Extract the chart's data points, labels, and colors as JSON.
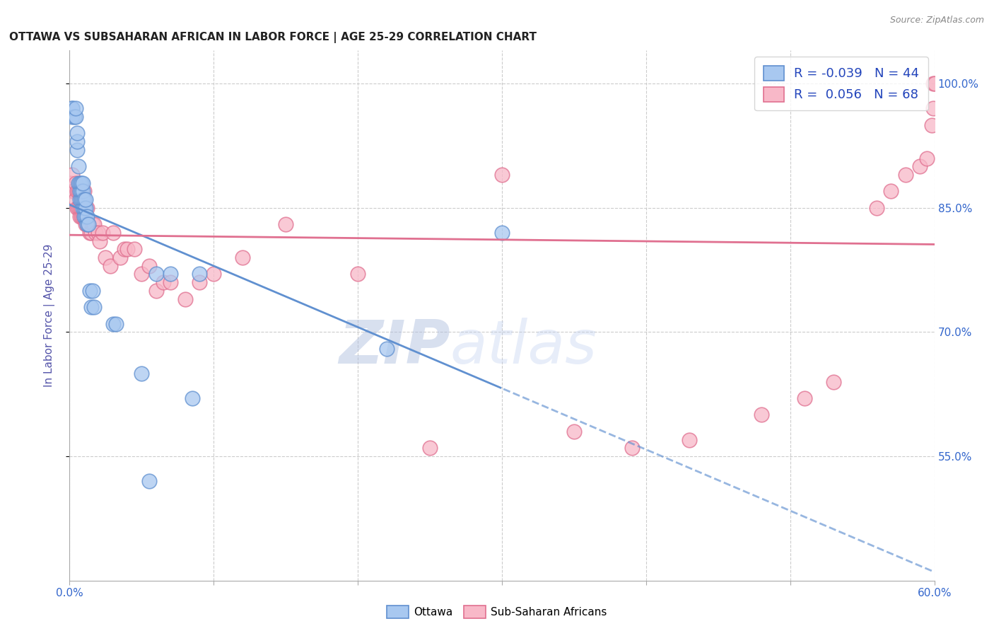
{
  "title": "OTTAWA VS SUBSAHARAN AFRICAN IN LABOR FORCE | AGE 25-29 CORRELATION CHART",
  "source": "Source: ZipAtlas.com",
  "ylabel": "In Labor Force | Age 25-29",
  "xlim": [
    0.0,
    0.6
  ],
  "ylim": [
    0.4,
    1.04
  ],
  "xticks": [
    0.0,
    0.1,
    0.2,
    0.3,
    0.4,
    0.5,
    0.6
  ],
  "xtick_labels": [
    "0.0%",
    "",
    "",
    "",
    "",
    "",
    "60.0%"
  ],
  "ytick_positions": [
    0.55,
    0.7,
    0.85,
    1.0
  ],
  "ytick_labels": [
    "55.0%",
    "70.0%",
    "85.0%",
    "100.0%"
  ],
  "watermark_zip": "ZIP",
  "watermark_atlas": "atlas",
  "legend_r1": "R = -0.039",
  "legend_n1": "N = 44",
  "legend_r2": "R =  0.056",
  "legend_n2": "N = 68",
  "color_ottawa_fill": "#A8C8F0",
  "color_ottawa_edge": "#6090D0",
  "color_subsaharan_fill": "#F8B8C8",
  "color_subsaharan_edge": "#E07090",
  "color_ottawa_trend": "#6090D0",
  "color_subsaharan_trend": "#E07090",
  "background_color": "#FFFFFF",
  "grid_color": "#CCCCCC",
  "ottawa_x": [
    0.002,
    0.002,
    0.002,
    0.003,
    0.004,
    0.004,
    0.005,
    0.005,
    0.005,
    0.006,
    0.006,
    0.007,
    0.007,
    0.007,
    0.008,
    0.008,
    0.008,
    0.009,
    0.009,
    0.009,
    0.009,
    0.01,
    0.01,
    0.01,
    0.011,
    0.011,
    0.011,
    0.012,
    0.012,
    0.013,
    0.014,
    0.015,
    0.016,
    0.017,
    0.03,
    0.032,
    0.05,
    0.055,
    0.06,
    0.07,
    0.085,
    0.09,
    0.22,
    0.3
  ],
  "ottawa_y": [
    0.96,
    0.97,
    0.97,
    0.96,
    0.96,
    0.97,
    0.92,
    0.93,
    0.94,
    0.88,
    0.9,
    0.86,
    0.87,
    0.88,
    0.86,
    0.87,
    0.88,
    0.85,
    0.86,
    0.87,
    0.88,
    0.84,
    0.85,
    0.86,
    0.84,
    0.85,
    0.86,
    0.83,
    0.84,
    0.83,
    0.75,
    0.73,
    0.75,
    0.73,
    0.71,
    0.71,
    0.65,
    0.52,
    0.77,
    0.77,
    0.62,
    0.77,
    0.68,
    0.82
  ],
  "subsaharan_x": [
    0.001,
    0.002,
    0.002,
    0.003,
    0.004,
    0.004,
    0.005,
    0.005,
    0.006,
    0.006,
    0.007,
    0.007,
    0.007,
    0.008,
    0.008,
    0.009,
    0.009,
    0.01,
    0.01,
    0.01,
    0.011,
    0.011,
    0.012,
    0.012,
    0.013,
    0.014,
    0.015,
    0.016,
    0.017,
    0.018,
    0.02,
    0.021,
    0.023,
    0.025,
    0.028,
    0.03,
    0.035,
    0.038,
    0.04,
    0.045,
    0.05,
    0.055,
    0.06,
    0.065,
    0.07,
    0.08,
    0.09,
    0.1,
    0.12,
    0.15,
    0.2,
    0.25,
    0.3,
    0.35,
    0.39,
    0.43,
    0.48,
    0.51,
    0.53,
    0.56,
    0.57,
    0.58,
    0.59,
    0.595,
    0.598,
    0.599,
    0.599,
    0.6
  ],
  "subsaharan_y": [
    0.88,
    0.87,
    0.89,
    0.87,
    0.86,
    0.88,
    0.85,
    0.87,
    0.85,
    0.87,
    0.84,
    0.85,
    0.87,
    0.84,
    0.85,
    0.84,
    0.86,
    0.84,
    0.85,
    0.87,
    0.83,
    0.85,
    0.83,
    0.85,
    0.83,
    0.82,
    0.82,
    0.83,
    0.83,
    0.82,
    0.82,
    0.81,
    0.82,
    0.79,
    0.78,
    0.82,
    0.79,
    0.8,
    0.8,
    0.8,
    0.77,
    0.78,
    0.75,
    0.76,
    0.76,
    0.74,
    0.76,
    0.77,
    0.79,
    0.83,
    0.77,
    0.56,
    0.89,
    0.58,
    0.56,
    0.57,
    0.6,
    0.62,
    0.64,
    0.85,
    0.87,
    0.89,
    0.9,
    0.91,
    0.95,
    0.97,
    1.0,
    1.0
  ]
}
